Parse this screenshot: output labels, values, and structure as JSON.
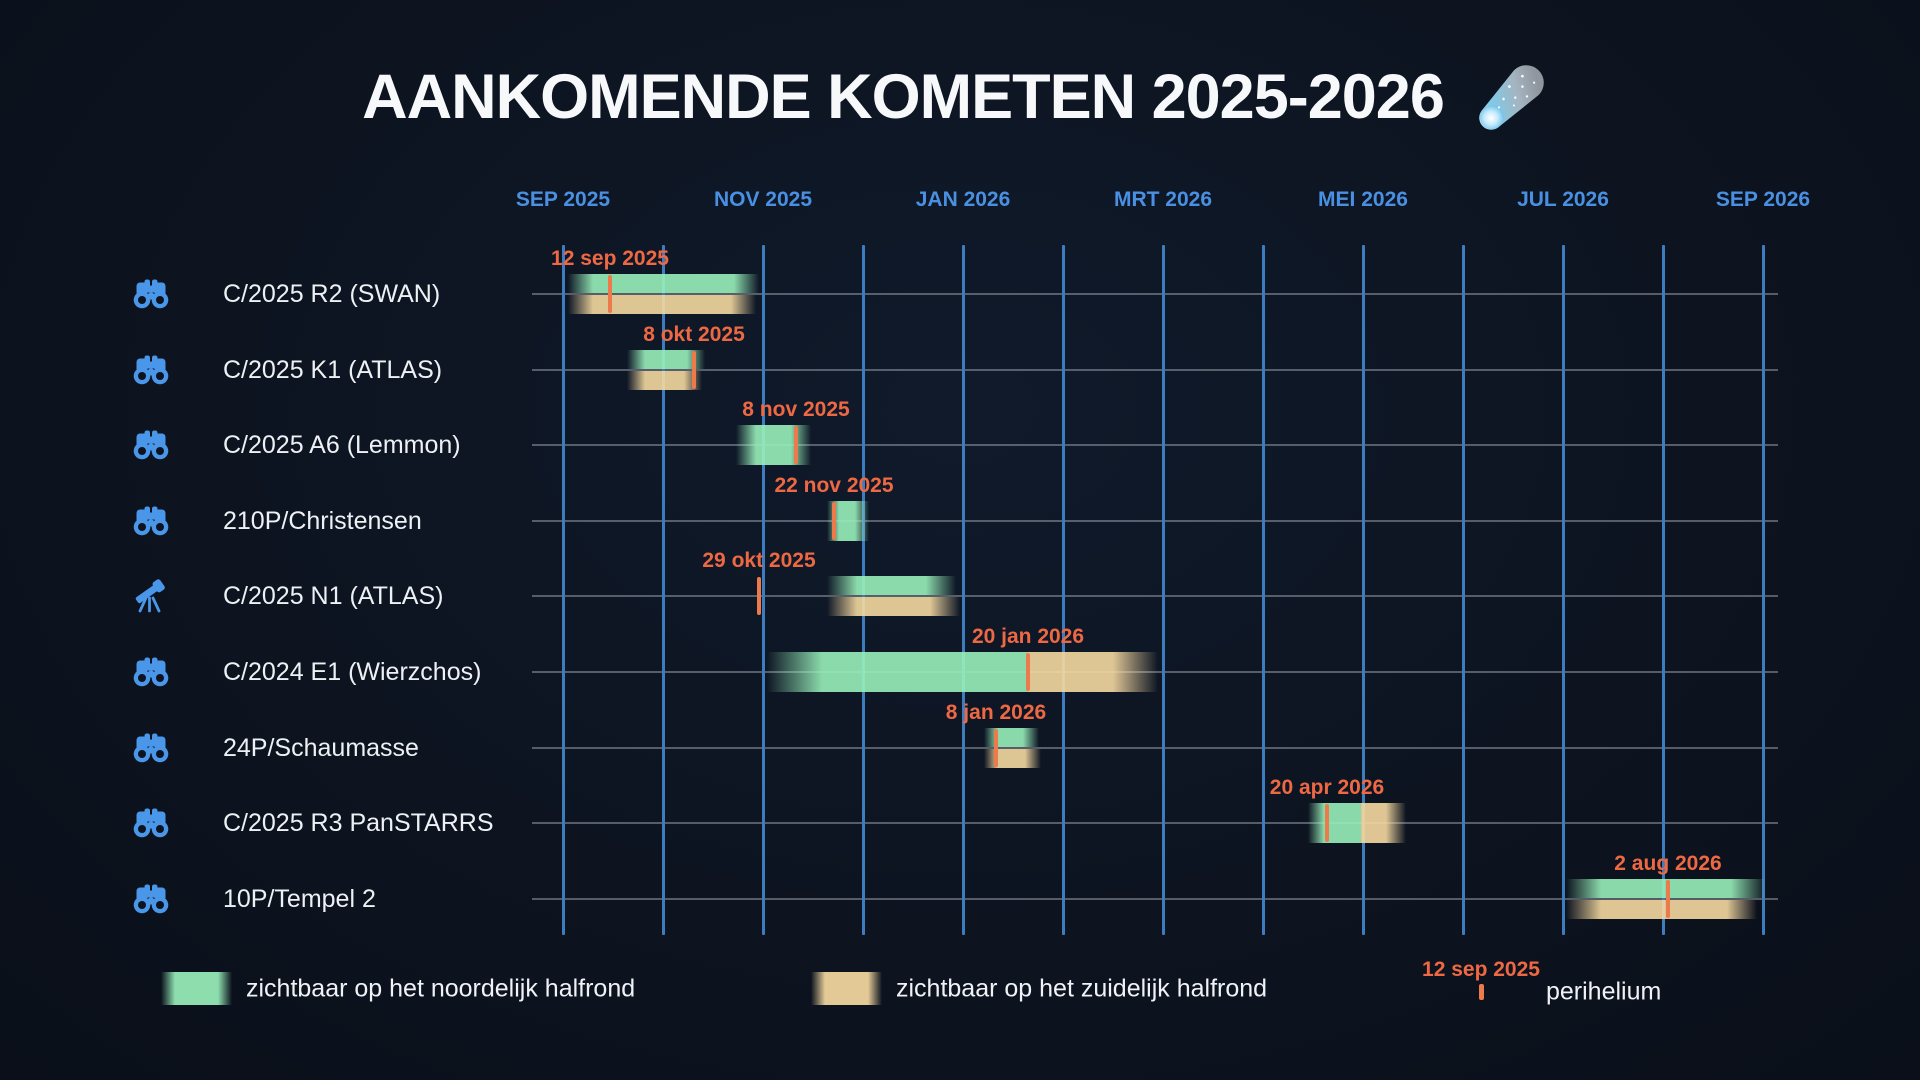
{
  "title": {
    "text": "AANKOMENDE KOMETEN 2025-2026",
    "emoji": "comet"
  },
  "legend": {
    "north_label": "zichtbaar op het noordelijk halfrond",
    "south_label": "zichtbaar op het zuidelijk halfrond",
    "perihelion_example_date": "12 sep 2025",
    "perihelion_label": "perihelium"
  },
  "chart_data": {
    "type": "gantt",
    "title": "AANKOMENDE KOMETEN 2025-2026",
    "x_axis": {
      "start": "2025-09",
      "end": "2026-09",
      "months_total": 12,
      "tick_labels": [
        "SEP 2025",
        "NOV 2025",
        "JAN 2026",
        "MRT 2026",
        "MEI 2026",
        "JUL 2026",
        "SEP 2026"
      ],
      "tick_month_offsets": [
        0,
        2,
        4,
        6,
        8,
        10,
        12
      ],
      "gridlines": true
    },
    "colors": {
      "background": "#0d1420",
      "green_north": "#98efba",
      "tan_south": "#f5d9a0",
      "tick_orange": "#ec7a4b",
      "date_text_orange": "#ee6843",
      "axis_blue": "#4a90e2",
      "grid_blue": "#3e7cc0",
      "row_line_gray": "rgba(160,166,175,0.5)",
      "text_white": "#f0f2f6",
      "icon_blue": "#4a96e8"
    },
    "legend": [
      {
        "swatch": "green",
        "label": "zichtbaar op het noordelijk halfrond"
      },
      {
        "swatch": "tan",
        "label": "zichtbaar op het zuidelijk halfrond"
      },
      {
        "swatch": "perihelion-tick",
        "sample_date": "12 sep 2025",
        "label": "perihelium"
      }
    ],
    "comets": [
      {
        "name": "C/2025 R2 (SWAN)",
        "icon": "binoculars",
        "perihelion_date": "12 sep 2025",
        "perihelion_m": 0.47,
        "bars": [
          {
            "band": "top",
            "color": "green",
            "start_m": 0.05,
            "end_m": 1.96,
            "fade_l": 25,
            "fade_r": 25
          },
          {
            "band": "bottom",
            "color": "tan",
            "start_m": 0.05,
            "end_m": 1.93,
            "fade_l": 25,
            "fade_r": 25
          }
        ]
      },
      {
        "name": "C/2025 K1 (ATLAS)",
        "icon": "binoculars",
        "perihelion_date": "8 okt 2025",
        "perihelion_m": 1.31,
        "bars": [
          {
            "band": "top",
            "color": "green",
            "start_m": 0.64,
            "end_m": 1.42,
            "fade_l": 18,
            "fade_r": 18
          },
          {
            "band": "bottom",
            "color": "tan",
            "start_m": 0.64,
            "end_m": 1.39,
            "fade_l": 18,
            "fade_r": 18
          }
        ]
      },
      {
        "name": "C/2025 A6 (Lemmon)",
        "icon": "binoculars",
        "perihelion_date": "8 nov 2025",
        "perihelion_m": 2.33,
        "bars": [
          {
            "band": "full",
            "color": "green",
            "start_m": 1.73,
            "end_m": 2.48,
            "fade_l": 20,
            "fade_r": 20
          }
        ]
      },
      {
        "name": "210P/Christensen",
        "icon": "binoculars",
        "perihelion_date": "22 nov 2025",
        "perihelion_m": 2.71,
        "bars": [
          {
            "band": "full",
            "color": "green",
            "start_m": 2.64,
            "end_m": 3.06,
            "fade_l": 12,
            "fade_r": 14
          }
        ]
      },
      {
        "name": "C/2025 N1 (ATLAS)",
        "icon": "telescope",
        "perihelion_date": "29 okt 2025",
        "perihelion_m": 1.96,
        "bars": [
          {
            "band": "top",
            "color": "green",
            "start_m": 2.64,
            "end_m": 3.93,
            "fade_l": 30,
            "fade_r": 30
          },
          {
            "band": "bottom",
            "color": "tan",
            "start_m": 2.64,
            "end_m": 3.97,
            "fade_l": 30,
            "fade_r": 30
          }
        ]
      },
      {
        "name": "C/2024 E1 (Wierzchos)",
        "icon": "binoculars",
        "perihelion_date": "20 jan 2026",
        "perihelion_m": 4.65,
        "bars": [
          {
            "band": "full",
            "color": "green",
            "start_m": 2.04,
            "end_m": 4.65,
            "fade_l": 55,
            "fade_r": 0
          },
          {
            "band": "full",
            "color": "tan",
            "start_m": 4.65,
            "end_m": 5.95,
            "fade_l": 0,
            "fade_r": 45
          }
        ]
      },
      {
        "name": "24P/Schaumasse",
        "icon": "binoculars",
        "perihelion_date": "8 jan 2026",
        "perihelion_m": 4.33,
        "bars": [
          {
            "band": "top",
            "color": "green",
            "start_m": 4.21,
            "end_m": 4.76,
            "fade_l": 14,
            "fade_r": 16
          },
          {
            "band": "bottom",
            "color": "tan",
            "start_m": 4.21,
            "end_m": 4.78,
            "fade_l": 14,
            "fade_r": 16
          }
        ]
      },
      {
        "name": "C/2025 R3 PanSTARRS",
        "icon": "binoculars",
        "perihelion_date": "20 apr 2026",
        "perihelion_m": 7.64,
        "bars": [
          {
            "band": "full",
            "color": "green",
            "start_m": 7.45,
            "end_m": 7.98,
            "fade_l": 16,
            "fade_r": 0
          },
          {
            "band": "full",
            "color": "tan",
            "start_m": 7.98,
            "end_m": 8.43,
            "fade_l": 0,
            "fade_r": 20
          }
        ]
      },
      {
        "name": "10P/Tempel 2",
        "icon": "binoculars",
        "perihelion_date": "2 aug 2026",
        "perihelion_m": 11.05,
        "bars": [
          {
            "band": "top",
            "color": "green",
            "start_m": 10.03,
            "end_m": 12.03,
            "fade_l": 35,
            "fade_r": 35
          },
          {
            "band": "bottom",
            "color": "tan",
            "start_m": 10.03,
            "end_m": 11.94,
            "fade_l": 35,
            "fade_r": 30
          }
        ]
      }
    ]
  }
}
